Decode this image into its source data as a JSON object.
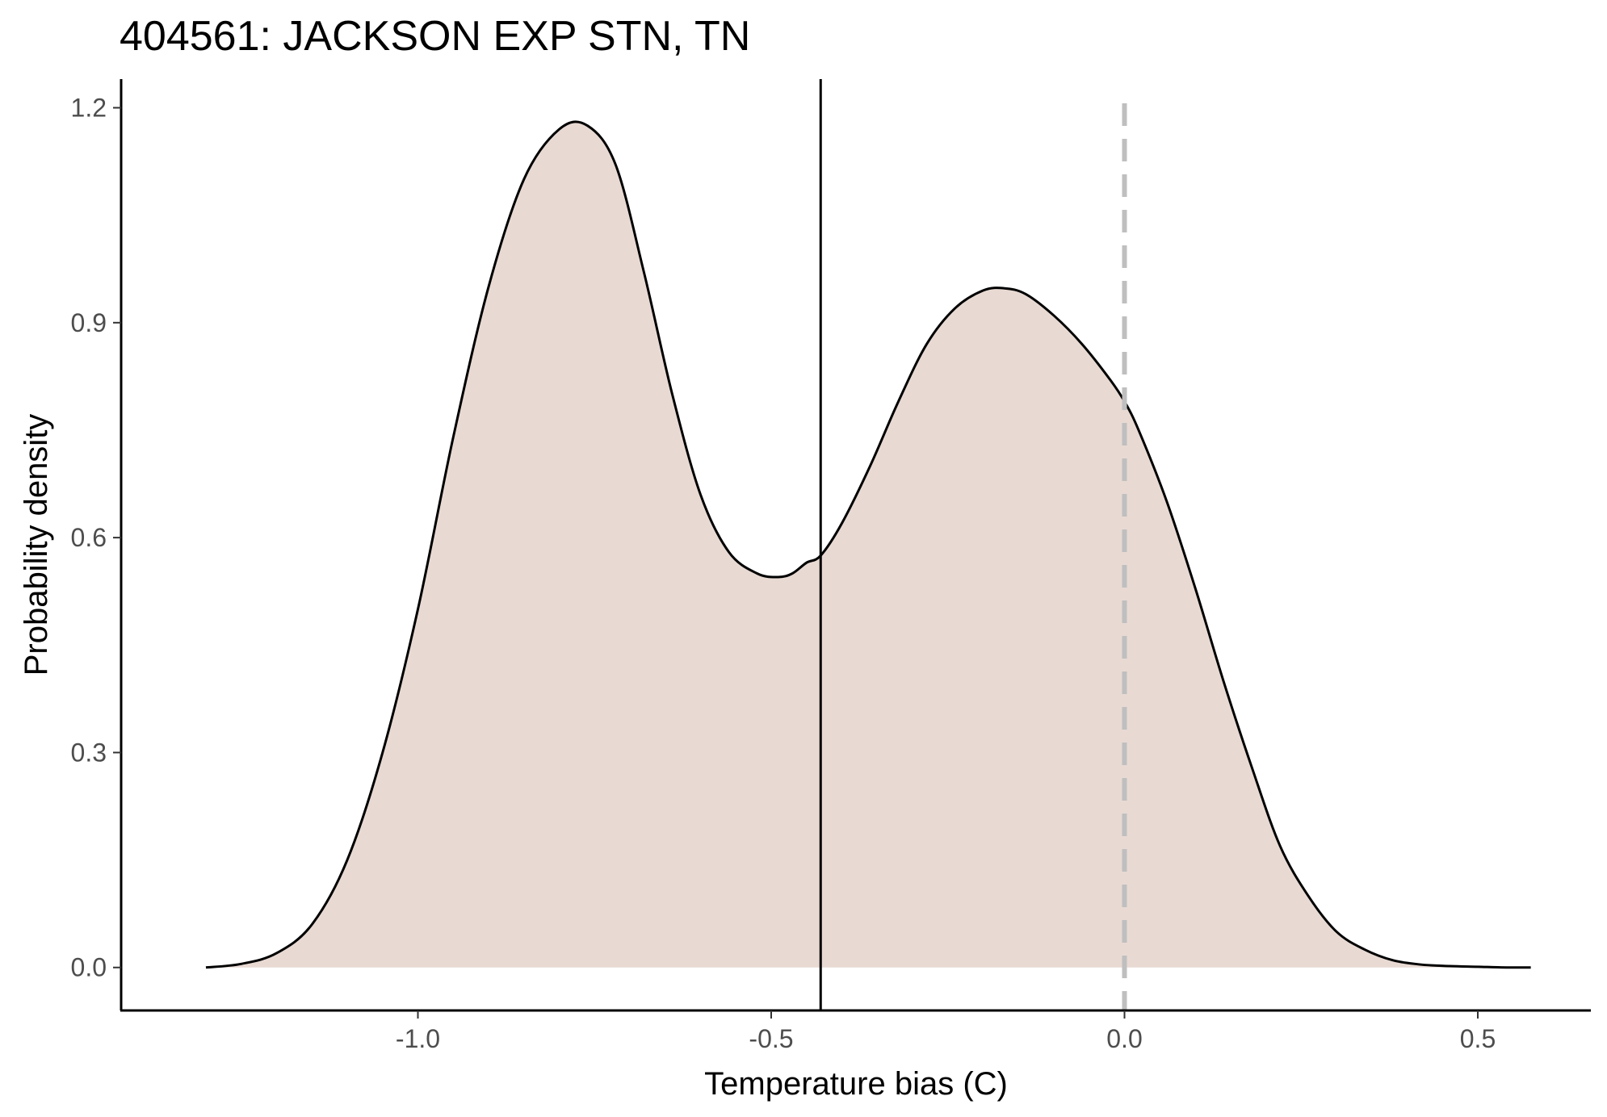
{
  "chart_data": {
    "type": "area",
    "title": "404561: JACKSON EXP STN, TN",
    "xlabel": "Temperature bias (C)",
    "ylabel": "Probability density",
    "xlim": [
      -1.42,
      0.66
    ],
    "ylim": [
      -0.06,
      1.24
    ],
    "x_ticks": [
      -1.0,
      -0.5,
      0.0,
      0.5
    ],
    "x_tick_labels": [
      "-1.0",
      "-0.5",
      "0.0",
      "0.5"
    ],
    "y_ticks": [
      0.0,
      0.3,
      0.6,
      0.9,
      1.2
    ],
    "y_tick_labels": [
      "0.0",
      "0.3",
      "0.6",
      "0.9",
      "1.2"
    ],
    "grid": false,
    "series": [
      {
        "fill": "#e8dad3",
        "line": "#000000",
        "x": [
          -1.3,
          -1.25,
          -1.2,
          -1.15,
          -1.1,
          -1.05,
          -1.0,
          -0.95,
          -0.9,
          -0.85,
          -0.8,
          -0.76,
          -0.72,
          -0.68,
          -0.64,
          -0.6,
          -0.56,
          -0.52,
          -0.49,
          -0.47,
          -0.45,
          -0.43,
          -0.4,
          -0.36,
          -0.32,
          -0.28,
          -0.24,
          -0.2,
          -0.17,
          -0.14,
          -0.1,
          -0.06,
          -0.02,
          0.0,
          0.02,
          0.06,
          0.1,
          0.14,
          0.18,
          0.22,
          0.26,
          0.3,
          0.34,
          0.38,
          0.42,
          0.46,
          0.5,
          0.54,
          0.575
        ],
        "y": [
          0.0,
          0.005,
          0.02,
          0.06,
          0.15,
          0.3,
          0.5,
          0.74,
          0.95,
          1.1,
          1.17,
          1.175,
          1.12,
          0.97,
          0.8,
          0.66,
          0.58,
          0.55,
          0.545,
          0.55,
          0.565,
          0.575,
          0.62,
          0.7,
          0.79,
          0.87,
          0.92,
          0.945,
          0.948,
          0.94,
          0.91,
          0.87,
          0.82,
          0.79,
          0.75,
          0.65,
          0.53,
          0.4,
          0.28,
          0.17,
          0.1,
          0.05,
          0.025,
          0.01,
          0.004,
          0.002,
          0.001,
          0.0,
          0.0
        ]
      }
    ],
    "vertical_lines": [
      {
        "x": -0.43,
        "style": "solid",
        "color": "#000000"
      },
      {
        "x": 0.0,
        "style": "dashed",
        "color": "#bfbfbf"
      }
    ]
  }
}
